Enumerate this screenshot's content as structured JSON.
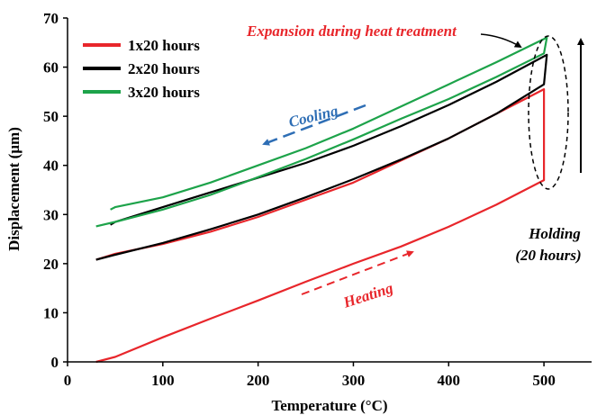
{
  "chart_data": {
    "type": "line",
    "xlabel": "Temperature (°C)",
    "ylabel": "Displacement (µm)",
    "xlim": [
      0,
      550
    ],
    "ylim": [
      0,
      70
    ],
    "xticks": [
      0,
      100,
      200,
      300,
      400,
      500
    ],
    "yticks": [
      0,
      10,
      20,
      30,
      40,
      50,
      60,
      70
    ],
    "grid": false,
    "legend_position": "top-left",
    "series": [
      {
        "name": "1x20 hours",
        "color": "#e8262b",
        "points": [
          [
            30,
            0
          ],
          [
            50,
            1
          ],
          [
            100,
            5
          ],
          [
            150,
            8.8
          ],
          [
            200,
            12.5
          ],
          [
            250,
            16.3
          ],
          [
            300,
            20
          ],
          [
            350,
            23.5
          ],
          [
            400,
            27.5
          ],
          [
            450,
            32
          ],
          [
            500,
            37
          ],
          [
            500,
            55.5
          ],
          [
            450,
            50.5
          ],
          [
            400,
            45.5
          ],
          [
            350,
            41
          ],
          [
            300,
            36.5
          ],
          [
            250,
            33
          ],
          [
            200,
            29.5
          ],
          [
            150,
            26.5
          ],
          [
            100,
            24
          ],
          [
            50,
            22
          ],
          [
            30,
            20.8
          ]
        ]
      },
      {
        "name": "2x20 hours",
        "color": "#000000",
        "points": [
          [
            30,
            20.8
          ],
          [
            50,
            21.8
          ],
          [
            100,
            24.2
          ],
          [
            150,
            27
          ],
          [
            200,
            30
          ],
          [
            250,
            33.5
          ],
          [
            300,
            37.2
          ],
          [
            350,
            41.2
          ],
          [
            400,
            45.5
          ],
          [
            450,
            50.5
          ],
          [
            500,
            56.5
          ],
          [
            503,
            62.5
          ],
          [
            450,
            57
          ],
          [
            400,
            52.3
          ],
          [
            350,
            48
          ],
          [
            300,
            44
          ],
          [
            250,
            40.5
          ],
          [
            200,
            37.5
          ],
          [
            150,
            34.5
          ],
          [
            100,
            31.5
          ],
          [
            50,
            28.5
          ],
          [
            45,
            27.9
          ]
        ]
      },
      {
        "name": "3x20 hours",
        "color": "#1da34a",
        "points": [
          [
            30,
            27.6
          ],
          [
            50,
            28.5
          ],
          [
            100,
            31
          ],
          [
            150,
            34
          ],
          [
            200,
            37.6
          ],
          [
            250,
            41.3
          ],
          [
            300,
            45.3
          ],
          [
            350,
            49.5
          ],
          [
            400,
            53.5
          ],
          [
            450,
            58
          ],
          [
            500,
            62.8
          ],
          [
            503,
            66
          ],
          [
            450,
            61
          ],
          [
            400,
            56.5
          ],
          [
            350,
            52
          ],
          [
            300,
            47.5
          ],
          [
            250,
            43.5
          ],
          [
            200,
            40
          ],
          [
            150,
            36.5
          ],
          [
            100,
            33.5
          ],
          [
            50,
            31.5
          ],
          [
            45,
            31
          ]
        ]
      }
    ],
    "annotations": {
      "expansion": "Expansion during heat treatment",
      "cooling": "Cooling",
      "heating": "Heating",
      "holding": "Holding",
      "holding_duration": "(20 hours)"
    },
    "annotation_colors": {
      "expansion": "#e8262b",
      "cooling": "#2e6eb5",
      "heating": "#e8262b",
      "holding": "#000000"
    }
  }
}
